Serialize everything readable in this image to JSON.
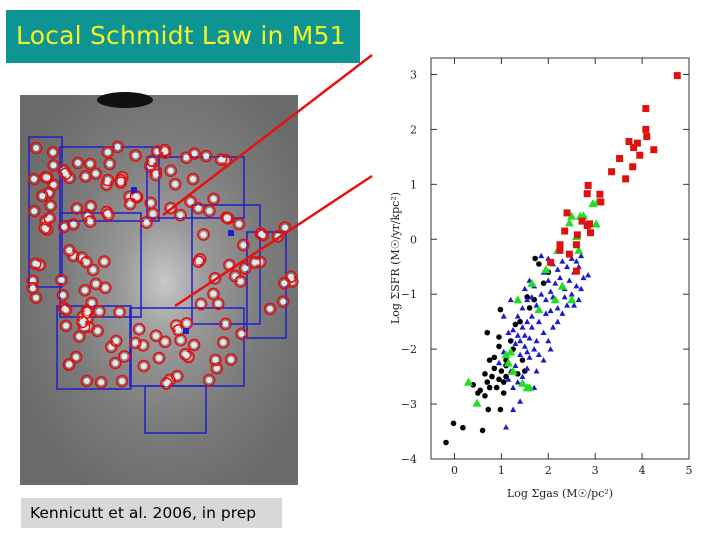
{
  "slide": {
    "title": "Local Schmidt Law in M51",
    "caption": "Kennicutt et al. 2006, in prep",
    "colors": {
      "title_bg": "#0f9494",
      "title_text": "#f5f52a",
      "pointer_line": "#e81010",
      "aperture_circle": "#e01010",
      "region_box": "#2020c8"
    }
  },
  "chart_data": {
    "type": "scatter",
    "title": "",
    "xlabel": "Log Σgas  (M☉/pc²)",
    "ylabel": "Log ΣSFR  (M☉/yr/kpc²)",
    "xlim": [
      -0.5,
      5
    ],
    "ylim": [
      -4,
      3.3
    ],
    "xticks": [
      0,
      1,
      2,
      3,
      4,
      5
    ],
    "yticks": [
      -4,
      -3,
      -2,
      -1,
      0,
      1,
      2,
      3
    ],
    "grid": false,
    "series": [
      {
        "name": "red squares",
        "marker": "square",
        "color": "#e01010",
        "points": [
          [
            4.75,
            2.98
          ],
          [
            4.08,
            2.38
          ],
          [
            4.08,
            2.0
          ],
          [
            4.1,
            1.87
          ],
          [
            4.25,
            1.63
          ],
          [
            3.72,
            1.78
          ],
          [
            3.9,
            1.75
          ],
          [
            3.82,
            1.67
          ],
          [
            3.95,
            1.53
          ],
          [
            3.52,
            1.47
          ],
          [
            3.35,
            1.23
          ],
          [
            3.8,
            1.32
          ],
          [
            3.65,
            1.1
          ],
          [
            2.85,
            0.98
          ],
          [
            2.83,
            0.83
          ],
          [
            3.1,
            0.82
          ],
          [
            3.12,
            0.68
          ],
          [
            2.4,
            0.48
          ],
          [
            2.72,
            0.33
          ],
          [
            2.88,
            0.28
          ],
          [
            2.83,
            0.25
          ],
          [
            2.35,
            0.15
          ],
          [
            2.9,
            0.12
          ],
          [
            2.62,
            0.08
          ],
          [
            2.6,
            -0.1
          ],
          [
            2.25,
            -0.1
          ],
          [
            2.25,
            -0.2
          ],
          [
            2.45,
            -0.27
          ],
          [
            2.05,
            -0.42
          ],
          [
            2.6,
            -0.58
          ]
        ]
      },
      {
        "name": "blue triangles",
        "marker": "triangle",
        "color": "#1a1acc",
        "points": [
          [
            1.1,
            -3.42
          ],
          [
            1.25,
            -3.1
          ],
          [
            1.4,
            -2.95
          ],
          [
            1.25,
            -2.7
          ],
          [
            1.7,
            -2.7
          ],
          [
            1.75,
            -2.4
          ],
          [
            1.9,
            -2.2
          ],
          [
            2.05,
            -2.0
          ],
          [
            1.55,
            -2.35
          ],
          [
            1.3,
            -2.3
          ],
          [
            1.15,
            -2.55
          ],
          [
            1.4,
            -2.1
          ],
          [
            1.5,
            -1.95
          ],
          [
            1.6,
            -1.8
          ],
          [
            1.7,
            -2.0
          ],
          [
            1.35,
            -1.75
          ],
          [
            1.25,
            -1.65
          ],
          [
            1.15,
            -1.7
          ],
          [
            1.45,
            -1.6
          ],
          [
            1.55,
            -1.5
          ],
          [
            1.65,
            -1.4
          ],
          [
            1.8,
            -1.5
          ],
          [
            1.9,
            -1.7
          ],
          [
            2.0,
            -1.85
          ],
          [
            2.1,
            -1.6
          ],
          [
            2.2,
            -1.5
          ],
          [
            1.75,
            -1.2
          ],
          [
            1.85,
            -1.0
          ],
          [
            1.95,
            -1.1
          ],
          [
            2.05,
            -0.95
          ],
          [
            2.15,
            -0.8
          ],
          [
            2.25,
            -0.7
          ],
          [
            2.35,
            -0.9
          ],
          [
            2.45,
            -0.75
          ],
          [
            2.55,
            -0.6
          ],
          [
            2.65,
            -0.5
          ],
          [
            2.75,
            -0.7
          ],
          [
            2.85,
            -0.65
          ],
          [
            2.7,
            -0.9
          ],
          [
            2.6,
            -0.85
          ],
          [
            2.5,
            -1.0
          ],
          [
            2.4,
            -1.2
          ],
          [
            2.3,
            -1.35
          ],
          [
            2.2,
            -1.25
          ],
          [
            2.1,
            -1.05
          ],
          [
            2.0,
            -0.75
          ],
          [
            1.9,
            -0.6
          ],
          [
            2.1,
            -0.45
          ],
          [
            2.2,
            -0.55
          ],
          [
            2.3,
            -0.4
          ],
          [
            2.4,
            -0.5
          ],
          [
            2.5,
            -0.35
          ],
          [
            2.6,
            -0.4
          ],
          [
            2.7,
            -0.3
          ],
          [
            1.6,
            -0.75
          ],
          [
            1.5,
            -0.9
          ],
          [
            1.7,
            -0.85
          ],
          [
            1.45,
            -1.25
          ],
          [
            1.35,
            -1.4
          ],
          [
            1.2,
            -1.1
          ],
          [
            1.05,
            -1.4
          ],
          [
            1.55,
            -1.1
          ],
          [
            1.65,
            -1.6
          ],
          [
            1.75,
            -1.85
          ],
          [
            1.8,
            -2.1
          ],
          [
            1.6,
            -2.15
          ],
          [
            1.45,
            -2.5
          ],
          [
            1.35,
            -2.6
          ],
          [
            0.95,
            -2.25
          ],
          [
            1.05,
            -2.05
          ],
          [
            2.35,
            -1.05
          ],
          [
            2.55,
            -1.2
          ],
          [
            2.65,
            -1.1
          ],
          [
            1.85,
            -0.3
          ],
          [
            2.0,
            -0.35
          ],
          [
            1.95,
            -1.35
          ],
          [
            1.65,
            -1.05
          ],
          [
            2.05,
            -1.3
          ],
          [
            1.3,
            -1.9
          ],
          [
            1.2,
            -2.4
          ],
          [
            1.5,
            -1.75
          ],
          [
            1.4,
            -1.85
          ],
          [
            1.55,
            -2.05
          ]
        ]
      },
      {
        "name": "black circles",
        "marker": "circle",
        "color": "#000000",
        "points": [
          [
            -0.18,
            -3.7
          ],
          [
            -0.02,
            -3.35
          ],
          [
            0.18,
            -3.43
          ],
          [
            0.6,
            -3.48
          ],
          [
            0.72,
            -3.1
          ],
          [
            0.98,
            -3.1
          ],
          [
            0.7,
            -1.7
          ],
          [
            0.95,
            -1.78
          ],
          [
            0.95,
            -1.95
          ],
          [
            0.98,
            -1.28
          ],
          [
            1.72,
            -0.35
          ],
          [
            0.4,
            -2.65
          ],
          [
            0.55,
            -2.75
          ],
          [
            0.65,
            -2.85
          ],
          [
            0.7,
            -2.6
          ],
          [
            0.8,
            -2.5
          ],
          [
            0.85,
            -2.35
          ],
          [
            0.9,
            -2.7
          ],
          [
            0.95,
            -2.55
          ],
          [
            1.0,
            -2.4
          ],
          [
            1.05,
            -2.6
          ],
          [
            1.1,
            -2.3
          ],
          [
            0.75,
            -2.2
          ],
          [
            0.85,
            -2.15
          ],
          [
            1.2,
            -1.85
          ],
          [
            1.3,
            -1.55
          ],
          [
            1.4,
            -1.5
          ],
          [
            1.25,
            -2.0
          ],
          [
            1.5,
            -2.4
          ],
          [
            1.35,
            -2.45
          ],
          [
            0.65,
            -2.45
          ],
          [
            0.75,
            -2.7
          ],
          [
            1.1,
            -2.5
          ],
          [
            1.55,
            -1.05
          ],
          [
            1.7,
            -1.1
          ],
          [
            1.8,
            -0.45
          ],
          [
            2.0,
            -0.6
          ],
          [
            1.9,
            -0.8
          ],
          [
            1.6,
            -1.25
          ],
          [
            1.1,
            -2.2
          ],
          [
            1.45,
            -2.2
          ],
          [
            1.05,
            -2.8
          ],
          [
            0.5,
            -2.8
          ]
        ]
      },
      {
        "name": "green triangles",
        "marker": "triangle",
        "color": "#22dd22",
        "points": [
          [
            2.95,
            0.65
          ],
          [
            3.05,
            0.68
          ],
          [
            2.5,
            0.42
          ],
          [
            2.75,
            0.43
          ],
          [
            2.68,
            0.42
          ],
          [
            2.45,
            0.3
          ],
          [
            3.02,
            0.28
          ],
          [
            2.6,
            0.05
          ],
          [
            2.65,
            -0.2
          ],
          [
            2.2,
            -0.2
          ],
          [
            1.95,
            -0.55
          ],
          [
            1.65,
            -0.8
          ],
          [
            2.3,
            -0.85
          ],
          [
            1.8,
            -1.28
          ],
          [
            2.5,
            -1.1
          ],
          [
            2.15,
            -1.1
          ],
          [
            1.35,
            -1.1
          ],
          [
            1.1,
            -2.1
          ],
          [
            1.2,
            -2.05
          ],
          [
            1.15,
            -2.25
          ],
          [
            1.25,
            -2.4
          ],
          [
            0.3,
            -2.6
          ],
          [
            1.6,
            -2.7
          ],
          [
            1.55,
            -2.7
          ],
          [
            0.48,
            -2.98
          ],
          [
            1.45,
            -2.62
          ]
        ]
      }
    ]
  }
}
